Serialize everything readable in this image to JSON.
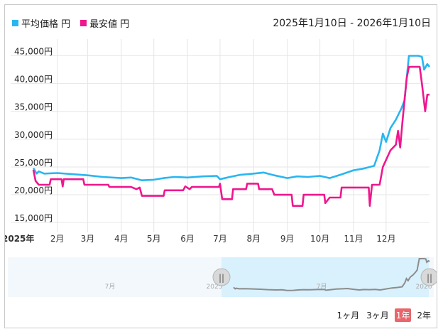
{
  "legend": [
    {
      "label": "平均価格 円",
      "color": "#29b6f0"
    },
    {
      "label": "最安値 円",
      "color": "#ef178e"
    }
  ],
  "date_range": "2025年1月10日 - 2026年1月10日",
  "navigator": {
    "labels": [
      "7月",
      "2025",
      "7月",
      "2026"
    ],
    "handle_glyph": "||"
  },
  "zoom_buttons": [
    {
      "label": "1ヶ月",
      "active": false
    },
    {
      "label": "3ヶ月",
      "active": false
    },
    {
      "label": "1年",
      "active": true
    },
    {
      "label": "2年",
      "active": false
    }
  ],
  "chart_data": {
    "type": "line",
    "x_start_label": "2025年",
    "x_ticks": [
      "2月",
      "3月",
      "4月",
      "5月",
      "6月",
      "7月",
      "8月",
      "9月",
      "10月",
      "11月",
      "12月"
    ],
    "y_ticks": [
      "15,000円",
      "20,000円",
      "25,000円",
      "30,000円",
      "35,000円",
      "40,000円",
      "45,000円"
    ],
    "ylim": [
      14000,
      48000
    ],
    "grid": true,
    "legend_position": "top-left",
    "series": [
      {
        "name": "平均価格 円",
        "color": "#29b6f0",
        "points": [
          [
            "2025-01-10",
            24800
          ],
          [
            "2025-01-13",
            23800
          ],
          [
            "2025-01-15",
            24200
          ],
          [
            "2025-01-20",
            23800
          ],
          [
            "2025-02-01",
            23900
          ],
          [
            "2025-02-15",
            23700
          ],
          [
            "2025-03-01",
            23500
          ],
          [
            "2025-03-15",
            23200
          ],
          [
            "2025-04-01",
            23000
          ],
          [
            "2025-04-10",
            23100
          ],
          [
            "2025-04-20",
            22600
          ],
          [
            "2025-05-01",
            22700
          ],
          [
            "2025-05-10",
            23000
          ],
          [
            "2025-05-20",
            23200
          ],
          [
            "2025-06-01",
            23100
          ],
          [
            "2025-06-15",
            23300
          ],
          [
            "2025-06-28",
            23400
          ],
          [
            "2025-07-01",
            22800
          ],
          [
            "2025-07-10",
            23200
          ],
          [
            "2025-07-20",
            23600
          ],
          [
            "2025-08-01",
            23800
          ],
          [
            "2025-08-10",
            24000
          ],
          [
            "2025-08-20",
            23500
          ],
          [
            "2025-09-01",
            23000
          ],
          [
            "2025-09-10",
            23300
          ],
          [
            "2025-09-20",
            23200
          ],
          [
            "2025-10-01",
            23400
          ],
          [
            "2025-10-10",
            23000
          ],
          [
            "2025-10-20",
            23600
          ],
          [
            "2025-11-01",
            24400
          ],
          [
            "2025-11-10",
            24700
          ],
          [
            "2025-11-20",
            25200
          ],
          [
            "2025-11-25",
            28000
          ],
          [
            "2025-11-28",
            31000
          ],
          [
            "2025-12-01",
            29500
          ],
          [
            "2025-12-05",
            32000
          ],
          [
            "2025-12-10",
            33500
          ],
          [
            "2025-12-15",
            35500
          ],
          [
            "2025-12-18",
            37000
          ],
          [
            "2025-12-20",
            41000
          ],
          [
            "2025-12-22",
            45000
          ],
          [
            "2025-12-31",
            45000
          ],
          [
            "2026-01-03",
            44800
          ],
          [
            "2026-01-05",
            42500
          ],
          [
            "2026-01-08",
            43500
          ],
          [
            "2026-01-10",
            43000
          ]
        ]
      },
      {
        "name": "最安値 円",
        "color": "#ef178e",
        "points": [
          [
            "2025-01-10",
            24500
          ],
          [
            "2025-01-12",
            22500
          ],
          [
            "2025-01-15",
            21800
          ],
          [
            "2025-01-25",
            21800
          ],
          [
            "2025-01-26",
            22800
          ],
          [
            "2025-02-05",
            22800
          ],
          [
            "2025-02-06",
            21500
          ],
          [
            "2025-02-07",
            22800
          ],
          [
            "2025-02-25",
            22800
          ],
          [
            "2025-02-26",
            21800
          ],
          [
            "2025-03-20",
            21800
          ],
          [
            "2025-03-21",
            21400
          ],
          [
            "2025-04-10",
            21400
          ],
          [
            "2025-04-15",
            21000
          ],
          [
            "2025-04-18",
            21300
          ],
          [
            "2025-04-20",
            19800
          ],
          [
            "2025-05-10",
            19800
          ],
          [
            "2025-05-11",
            20800
          ],
          [
            "2025-05-28",
            20800
          ],
          [
            "2025-05-30",
            21500
          ],
          [
            "2025-06-03",
            21000
          ],
          [
            "2025-06-05",
            21400
          ],
          [
            "2025-06-30",
            21400
          ],
          [
            "2025-07-01",
            22000
          ],
          [
            "2025-07-03",
            19200
          ],
          [
            "2025-07-12",
            19200
          ],
          [
            "2025-07-13",
            21000
          ],
          [
            "2025-07-25",
            21000
          ],
          [
            "2025-07-26",
            22000
          ],
          [
            "2025-08-05",
            22000
          ],
          [
            "2025-08-06",
            21000
          ],
          [
            "2025-08-18",
            21000
          ],
          [
            "2025-08-20",
            20000
          ],
          [
            "2025-09-05",
            20000
          ],
          [
            "2025-09-06",
            18000
          ],
          [
            "2025-09-15",
            18000
          ],
          [
            "2025-09-16",
            20000
          ],
          [
            "2025-10-05",
            20000
          ],
          [
            "2025-10-06",
            18500
          ],
          [
            "2025-10-10",
            19500
          ],
          [
            "2025-10-20",
            19500
          ],
          [
            "2025-10-21",
            21300
          ],
          [
            "2025-11-15",
            21300
          ],
          [
            "2025-11-16",
            18000
          ],
          [
            "2025-11-18",
            21800
          ],
          [
            "2025-11-25",
            21800
          ],
          [
            "2025-11-28",
            25000
          ],
          [
            "2025-12-05",
            28000
          ],
          [
            "2025-12-10",
            29000
          ],
          [
            "2025-12-12",
            31500
          ],
          [
            "2025-12-14",
            28500
          ],
          [
            "2025-12-16",
            33000
          ],
          [
            "2025-12-18",
            37000
          ],
          [
            "2025-12-20",
            41000
          ],
          [
            "2025-12-22",
            43000
          ],
          [
            "2026-01-01",
            43000
          ],
          [
            "2026-01-03",
            40000
          ],
          [
            "2026-01-06",
            35000
          ],
          [
            "2026-01-08",
            38000
          ],
          [
            "2026-01-10",
            38000
          ]
        ]
      }
    ]
  }
}
